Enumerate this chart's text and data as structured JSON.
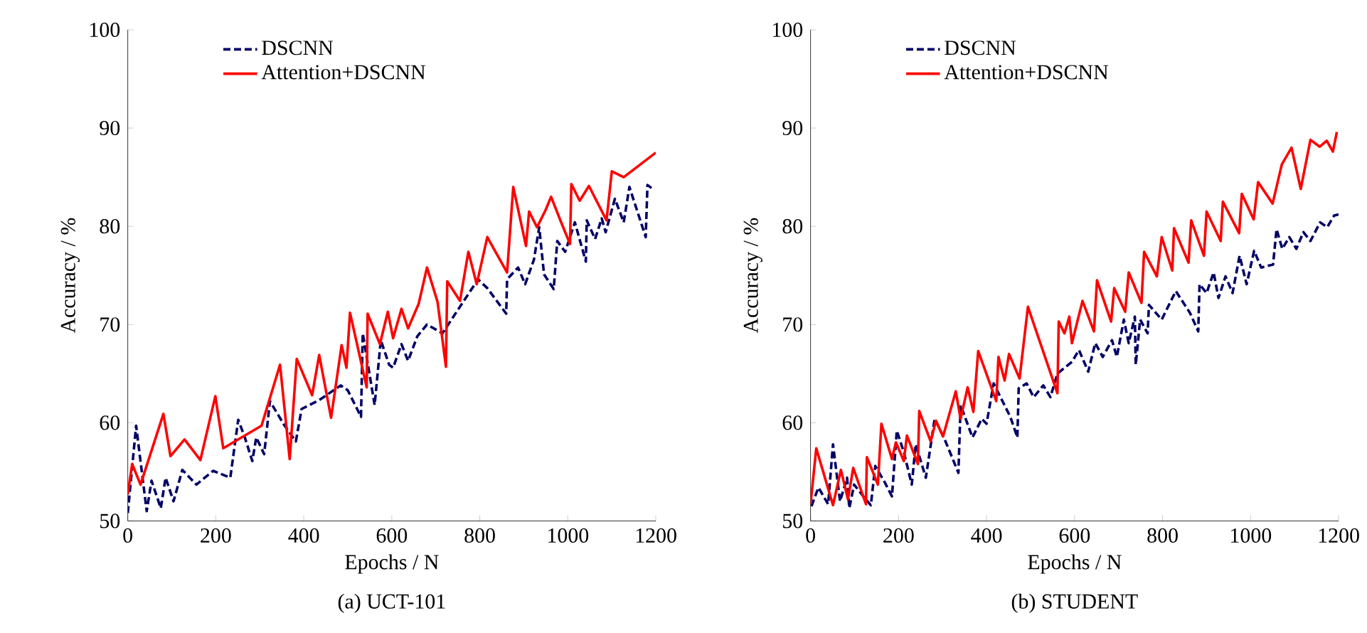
{
  "chart_data": [
    {
      "type": "line",
      "title": "(a) UCT-101",
      "xlabel": "Epochs / N",
      "ylabel": "Accuracy / %",
      "xlim": [
        0,
        1200
      ],
      "xticks": [
        0,
        200,
        400,
        600,
        800,
        1000,
        1200
      ],
      "ylim": [
        50,
        100
      ],
      "yticks": [
        50,
        60,
        70,
        80,
        90,
        100
      ],
      "legend": "top",
      "grid": false,
      "series": [
        {
          "name": "DSCNN",
          "color": "#000066",
          "line_style": "dashed",
          "x": [
            0,
            19,
            43,
            54,
            75,
            86,
            104,
            124,
            156,
            194,
            233,
            251,
            266,
            283,
            292,
            310,
            323,
            355,
            382,
            395,
            435,
            484,
            500,
            530,
            534,
            561,
            575,
            594,
            603,
            622,
            637,
            658,
            680,
            715,
            796,
            817,
            860,
            862,
            887,
            903,
            923,
            935,
            946,
            968,
            976,
            994,
            1016,
            1041,
            1043,
            1062,
            1077,
            1086,
            1107,
            1127,
            1140,
            1177,
            1181,
            1196
          ],
          "values": [
            50.8,
            59.7,
            51.0,
            54.1,
            51.3,
            54.4,
            52.0,
            55.2,
            53.7,
            55.1,
            54.4,
            60.3,
            58.5,
            56.1,
            58.5,
            56.8,
            62.2,
            59.8,
            58.1,
            61.4,
            62.3,
            63.8,
            63.3,
            60.6,
            69.1,
            61.8,
            68.4,
            65.9,
            65.6,
            68.0,
            66.3,
            68.8,
            70.0,
            69.1,
            74.6,
            73.7,
            71.1,
            74.6,
            75.8,
            74.1,
            76.6,
            79.9,
            75.1,
            73.6,
            78.5,
            77.4,
            80.4,
            76.4,
            80.6,
            78.7,
            80.8,
            79.4,
            82.8,
            80.4,
            84.0,
            78.9,
            84.2,
            83.7
          ]
        },
        {
          "name": "Attention+DSCNN",
          "color": "#ff0000",
          "line_style": "solid",
          "x": [
            0,
            10,
            29,
            81,
            97,
            129,
            165,
            199,
            217,
            304,
            346,
            368,
            384,
            419,
            435,
            462,
            486,
            497,
            505,
            543,
            545,
            573,
            591,
            603,
            622,
            637,
            661,
            680,
            704,
            723,
            726,
            755,
            774,
            793,
            817,
            862,
            876,
            905,
            912,
            930,
            949,
            962,
            984,
            1005,
            1008,
            1027,
            1048,
            1088,
            1100,
            1127,
            1200
          ],
          "values": [
            52.7,
            55.8,
            53.7,
            60.9,
            56.6,
            58.3,
            56.2,
            62.7,
            57.4,
            59.7,
            65.9,
            56.3,
            66.5,
            62.8,
            66.9,
            60.5,
            67.9,
            65.6,
            71.2,
            63.6,
            71.1,
            68.0,
            71.3,
            68.6,
            71.6,
            69.6,
            72.1,
            75.8,
            72.3,
            65.7,
            74.4,
            72.4,
            77.4,
            74.1,
            78.9,
            75.3,
            84.0,
            78.0,
            81.5,
            79.9,
            81.6,
            83.0,
            80.5,
            78.2,
            84.3,
            82.6,
            84.1,
            80.6,
            85.6,
            85.0,
            87.5
          ]
        }
      ]
    },
    {
      "type": "line",
      "title": "(b) STUDENT",
      "xlabel": "Epochs / N",
      "ylabel": "Accuracy / %",
      "xlim": [
        0,
        1200
      ],
      "xticks": [
        0,
        200,
        400,
        600,
        800,
        1000,
        1200
      ],
      "ylim": [
        50,
        100
      ],
      "yticks": [
        50,
        60,
        70,
        80,
        90,
        100
      ],
      "legend": "top",
      "grid": false,
      "series": [
        {
          "name": "DSCNN",
          "color": "#000066",
          "line_style": "dashed",
          "x": [
            2,
            18,
            40,
            51,
            67,
            83,
            88,
            99,
            120,
            137,
            147,
            169,
            185,
            196,
            212,
            230,
            239,
            262,
            282,
            303,
            336,
            341,
            368,
            389,
            400,
            416,
            454,
            470,
            473,
            491,
            507,
            529,
            545,
            561,
            594,
            610,
            631,
            647,
            664,
            685,
            696,
            712,
            723,
            737,
            739,
            749,
            766,
            769,
            798,
            830,
            862,
            881,
            884,
            900,
            916,
            927,
            943,
            959,
            975,
            991,
            1008,
            1024,
            1051,
            1059,
            1072,
            1088,
            1104,
            1120,
            1136,
            1158,
            1174,
            1190,
            1200
          ],
          "values": [
            51.5,
            53.4,
            51.7,
            57.8,
            52.0,
            54.4,
            51.3,
            53.7,
            52.5,
            51.6,
            55.6,
            53.9,
            52.5,
            59.2,
            57.0,
            53.7,
            57.8,
            54.4,
            60.4,
            58.5,
            54.9,
            61.8,
            58.5,
            60.4,
            59.9,
            64.0,
            60.6,
            58.5,
            63.5,
            64.0,
            62.6,
            63.8,
            62.6,
            65.0,
            66.2,
            67.4,
            65.2,
            68.1,
            66.7,
            68.4,
            66.7,
            70.5,
            68.1,
            70.8,
            65.9,
            70.5,
            69.1,
            72.0,
            70.5,
            73.4,
            71.2,
            69.3,
            74.1,
            73.2,
            75.3,
            72.7,
            74.9,
            73.2,
            77.0,
            74.1,
            77.5,
            75.8,
            76.1,
            79.7,
            77.7,
            78.9,
            77.7,
            79.4,
            78.5,
            80.4,
            79.9,
            81.1,
            81.2
          ]
        },
        {
          "name": "Attention+DSCNN",
          "color": "#ff0000",
          "line_style": "solid",
          "x": [
            0,
            13,
            51,
            69,
            85,
            97,
            126,
            128,
            153,
            161,
            185,
            194,
            212,
            219,
            244,
            247,
            273,
            285,
            301,
            330,
            341,
            357,
            370,
            381,
            422,
            427,
            441,
            451,
            475,
            494,
            561,
            564,
            577,
            588,
            594,
            618,
            644,
            651,
            683,
            690,
            715,
            723,
            752,
            758,
            787,
            798,
            822,
            826,
            859,
            865,
            894,
            900,
            932,
            937,
            974,
            980,
            1007,
            1017,
            1050,
            1071,
            1093,
            1114,
            1136,
            1157,
            1173,
            1187,
            1196
          ],
          "values": [
            51.7,
            57.4,
            51.6,
            55.2,
            52.2,
            55.4,
            51.7,
            56.5,
            53.7,
            59.9,
            56.3,
            58.0,
            56.1,
            58.7,
            55.8,
            61.2,
            58.1,
            60.2,
            58.6,
            63.2,
            60.4,
            63.6,
            61.1,
            67.3,
            62.2,
            66.7,
            64.3,
            67.0,
            64.5,
            71.8,
            63.0,
            70.3,
            69.1,
            70.8,
            68.1,
            72.4,
            69.3,
            74.5,
            70.3,
            73.7,
            71.3,
            75.3,
            72.2,
            77.4,
            74.9,
            78.9,
            75.5,
            79.8,
            76.3,
            80.6,
            77.0,
            81.5,
            78.5,
            82.5,
            79.3,
            83.3,
            80.7,
            84.5,
            82.3,
            86.3,
            88.0,
            83.8,
            88.8,
            88.1,
            88.7,
            87.6,
            89.6
          ]
        }
      ]
    }
  ]
}
